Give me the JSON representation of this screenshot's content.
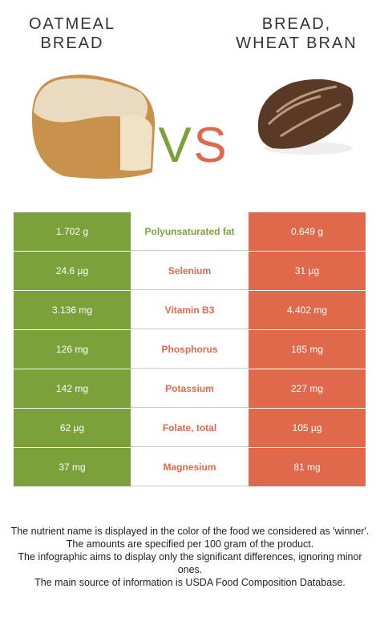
{
  "header": {
    "left_title": [
      "OATMEAL",
      "BREAD"
    ],
    "right_title": [
      "BREAD,",
      "WHEAT BRAN"
    ],
    "vs": [
      "V",
      "S"
    ],
    "left_color": "#7ba23a",
    "right_color": "#e0694b"
  },
  "table": {
    "rows": [
      {
        "left": "1.702 g",
        "nutrient": "Polyunsaturated fat",
        "right": "0.649 g",
        "color": "#7ba23a"
      },
      {
        "left": "24.6 µg",
        "nutrient": "Selenium",
        "right": "31 µg",
        "color": "#e0694b"
      },
      {
        "left": "3.136 mg",
        "nutrient": "Vitamin B3",
        "right": "4.402 mg",
        "color": "#e0694b"
      },
      {
        "left": "126 mg",
        "nutrient": "Phosphorus",
        "right": "185 mg",
        "color": "#e0694b"
      },
      {
        "left": "142 mg",
        "nutrient": "Potassium",
        "right": "227 mg",
        "color": "#e0694b"
      },
      {
        "left": "62 µg",
        "nutrient": "Folate, total",
        "right": "105 µg",
        "color": "#e0694b"
      },
      {
        "left": "37 mg",
        "nutrient": "Magnesium",
        "right": "81 mg",
        "color": "#e0694b"
      }
    ]
  },
  "notes": [
    "The nutrient name is displayed in the color of the food we considered as 'winner'.",
    "The amounts are specified per 100 gram of the product.",
    "The infographic aims to display only the significant differences, ignoring minor ones.",
    "The main source of information is USDA Food Composition Database."
  ]
}
